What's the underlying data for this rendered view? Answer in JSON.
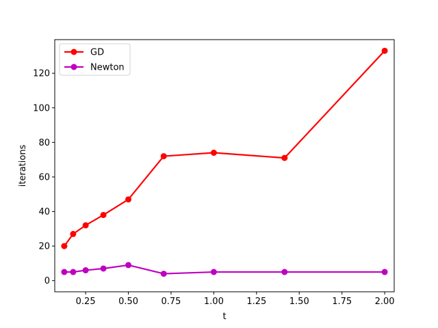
{
  "chart_data": {
    "type": "line",
    "xlabel": "t",
    "ylabel": "iterations",
    "xlim": [
      0.0693,
      2.0557
    ],
    "ylim": [
      -6.45,
      139.45
    ],
    "xticks": [
      0.25,
      0.5,
      0.75,
      1.0,
      1.25,
      1.5,
      1.75,
      2.0
    ],
    "xtick_labels": [
      "0.25",
      "0.50",
      "0.75",
      "1.00",
      "1.25",
      "1.50",
      "1.75",
      "2.00"
    ],
    "yticks": [
      0,
      20,
      40,
      60,
      80,
      100,
      120
    ],
    "ytick_labels": [
      "0",
      "20",
      "40",
      "60",
      "80",
      "100",
      "120"
    ],
    "grid": false,
    "legend_position": "upper-left",
    "x": [
      0.125,
      0.177,
      0.25,
      0.354,
      0.5,
      0.707,
      1.0,
      1.414,
      2.0
    ],
    "series": [
      {
        "name": "GD",
        "color": "#ff0000",
        "marker": "circle",
        "values": [
          20,
          27,
          32,
          38,
          47,
          72,
          74,
          71,
          133
        ]
      },
      {
        "name": "Newton",
        "color": "#bf00bf",
        "marker": "circle",
        "values": [
          5,
          5,
          6,
          7,
          9,
          4,
          5,
          5,
          5
        ]
      }
    ]
  }
}
